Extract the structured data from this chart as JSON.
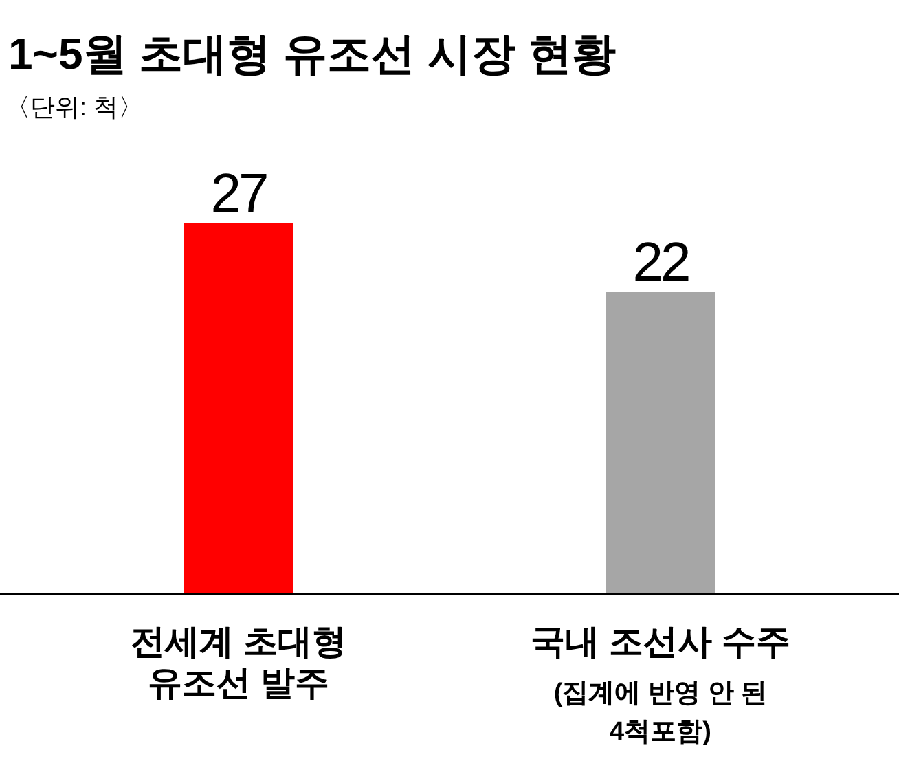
{
  "chart_data": {
    "type": "bar",
    "title": "1~5월 초대형 유조선 시장 현황",
    "subtitle": "〈단위: 척〉",
    "categories": [
      "전세계 초대형\n유조선 발주",
      "국내 조선사 수주"
    ],
    "values": [
      27,
      22
    ],
    "colors": [
      "#ff0000",
      "#a6a6a6"
    ],
    "data_labels": true,
    "annotations": [
      "(집계에 반영 안 된\n4척포함)"
    ]
  }
}
